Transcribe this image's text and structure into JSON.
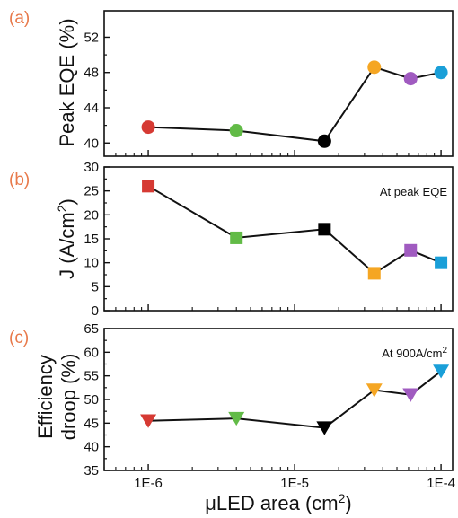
{
  "chart_data": {
    "type": "scatter",
    "shared_x": {
      "label": "μLED area (cm²)",
      "label_main": "μLED area (cm",
      "label_sup": "2",
      "label_tail": ")",
      "scale": "log",
      "xlim": [
        5e-07,
        0.00012
      ],
      "major_ticks": [
        1e-06,
        1e-05,
        0.0001
      ],
      "tick_labels": [
        "1E-6",
        "1E-5",
        "1E-4"
      ]
    },
    "x": [
      1e-06,
      4e-06,
      1.6e-05,
      3.5e-05,
      6.2e-05,
      0.0001
    ],
    "point_colors": [
      "#d63a33",
      "#62bb47",
      "#000000",
      "#f5a623",
      "#a05bc0",
      "#1a9fd8"
    ],
    "panels": [
      {
        "letter": "(a)",
        "ylabel": "Peak EQE (%)",
        "ylim": [
          38.5,
          55
        ],
        "yticks": [
          40,
          44,
          48,
          52
        ],
        "marker": "circle",
        "annotation": "",
        "values": [
          41.8,
          41.4,
          40.2,
          48.6,
          47.3,
          48.0
        ]
      },
      {
        "letter": "(b)",
        "ylabel": "J (A/cm²)",
        "ylabel_main": "J (A/cm",
        "ylabel_sup": "2",
        "ylabel_tail": ")",
        "ylim": [
          0,
          30
        ],
        "yticks": [
          0,
          5,
          10,
          15,
          20,
          25,
          30
        ],
        "marker": "square",
        "annotation": "At peak EQE",
        "values": [
          26.0,
          15.2,
          17.0,
          7.8,
          12.6,
          10.0
        ]
      },
      {
        "letter": "(c)",
        "ylabel_line1": "Efficiency",
        "ylabel_line2": "droop (%)",
        "ylim": [
          35,
          65
        ],
        "yticks": [
          35,
          40,
          45,
          50,
          55,
          60,
          65
        ],
        "marker": "triangle-down",
        "annotation_main": "At 900A/cm",
        "annotation_sup": "2",
        "values": [
          45.5,
          46.0,
          44.0,
          52.0,
          51.0,
          56.0
        ]
      }
    ]
  }
}
